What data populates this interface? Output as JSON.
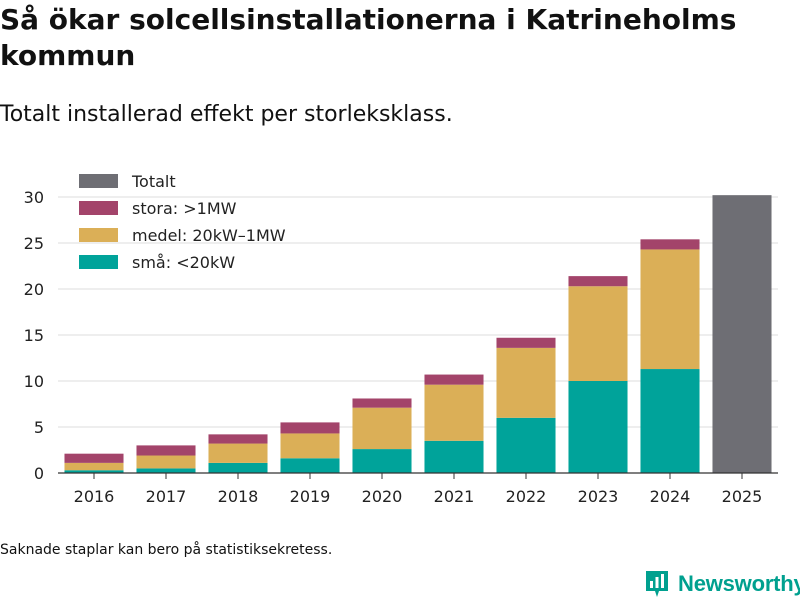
{
  "title": "Så ökar solcellsinstallationerna i Katrineholms kommun",
  "subtitle": "Totalt installerad effekt per storleksklass.",
  "footnote": "Saknade staplar kan bero på statistiksekretess.",
  "brand": {
    "name": "Newsworthy",
    "logo_icon": "newsworthy-logo-icon",
    "color": "#00a08f"
  },
  "chart_data": {
    "type": "bar",
    "stacked": true,
    "title": "Så ökar solcellsinstallationerna i Katrineholms kommun",
    "subtitle": "Totalt installerad effekt per storleksklass.",
    "xlabel": "",
    "ylabel": "",
    "categories": [
      "2016",
      "2017",
      "2018",
      "2019",
      "2020",
      "2021",
      "2022",
      "2023",
      "2024",
      "2025"
    ],
    "ylim": [
      0,
      30
    ],
    "yticks": [
      0,
      5,
      10,
      15,
      20,
      25,
      30
    ],
    "grid": true,
    "legend_position": "top-left",
    "legend": [
      {
        "key": "Totalt",
        "label": "Totalt",
        "color": "#6e6e74"
      },
      {
        "key": "stora",
        "label": "stora: >1MW",
        "color": "#a3446a"
      },
      {
        "key": "medel",
        "label": "medel: 20kW–1MW",
        "color": "#dbaf57"
      },
      {
        "key": "sma",
        "label": "små: <20kW",
        "color": "#00a39a"
      }
    ],
    "series": [
      {
        "key": "sma",
        "name": "små: <20kW",
        "color": "#00a39a",
        "values": [
          0.3,
          0.5,
          1.1,
          1.6,
          2.6,
          3.5,
          6.0,
          10.0,
          11.3,
          null
        ]
      },
      {
        "key": "medel",
        "name": "medel: 20kW–1MW",
        "color": "#dbaf57",
        "values": [
          0.8,
          1.4,
          2.1,
          2.7,
          4.5,
          6.1,
          7.6,
          10.3,
          13.0,
          null
        ]
      },
      {
        "key": "stora",
        "name": "stora: >1MW",
        "color": "#a3446a",
        "values": [
          1.0,
          1.1,
          1.0,
          1.2,
          1.0,
          1.1,
          1.1,
          1.1,
          1.1,
          null
        ]
      },
      {
        "key": "Totalt",
        "name": "Totalt",
        "color": "#6e6e74",
        "values": [
          null,
          null,
          null,
          null,
          null,
          null,
          null,
          null,
          null,
          30.2
        ]
      }
    ]
  }
}
